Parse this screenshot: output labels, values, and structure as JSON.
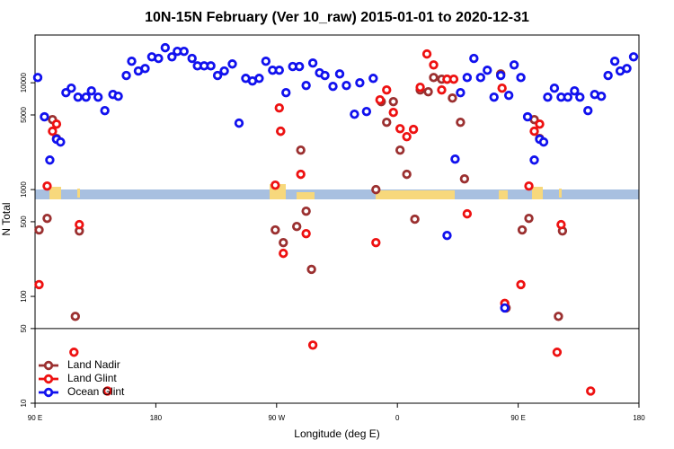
{
  "chart_data": {
    "type": "scatter",
    "title": "10N-15N February (Ver 10_raw)   2015-01-01 to 2020-12-31",
    "x_label": "Longitude (deg E)",
    "y_label": "N Total",
    "xlim": [
      90,
      540
    ],
    "xticks": [
      {
        "value": 90,
        "label": "90 E"
      },
      {
        "value": 180,
        "label": "180"
      },
      {
        "value": 270,
        "label": "90 W"
      },
      {
        "value": 360,
        "label": "0"
      },
      {
        "value": 450,
        "label": "90 E"
      },
      {
        "value": 540,
        "label": "180"
      }
    ],
    "ylim": [
      10,
      28000
    ],
    "yticks": [
      10,
      50,
      100,
      500,
      1000,
      5000,
      10000
    ],
    "log_y": true,
    "legend": "bottom-left",
    "series": [
      {
        "name": "Land Nadir",
        "color": "#9b3030",
        "x": [
          93,
          99,
          103,
          106,
          123,
          120,
          269,
          273,
          275,
          285,
          288,
          292,
          296,
          344,
          348,
          352,
          357,
          362,
          367,
          373,
          377,
          383,
          387,
          393,
          397,
          401,
          407,
          410,
          437,
          441,
          453,
          458,
          462,
          466,
          483,
          480
        ],
        "values": [
          419,
          538,
          4520,
          3010,
          410,
          65,
          419,
          3520,
          319,
          452,
          2340,
          628,
          179,
          1000,
          6660,
          4270,
          6660,
          2340,
          1390,
          528,
          8570,
          8240,
          11200,
          10800,
          10800,
          7190,
          4270,
          1260,
          12100,
          78,
          419,
          538,
          4520,
          3010,
          410,
          65
        ]
      },
      {
        "name": "Land Glint",
        "color": "#ee1111",
        "x": [
          93,
          99,
          103,
          106,
          123,
          119,
          144,
          269,
          272,
          273,
          275,
          288,
          292,
          297,
          344,
          347,
          352,
          357,
          362,
          367,
          372,
          377,
          382,
          387,
          393,
          397,
          402,
          412,
          438,
          440,
          452,
          458,
          462,
          466,
          482,
          479,
          504
        ],
        "values": [
          129,
          1080,
          3520,
          4100,
          470,
          30,
          13,
          1100,
          5820,
          3520,
          253,
          1390,
          387,
          35,
          319,
          6920,
          8570,
          5280,
          3720,
          3130,
          3660,
          9080,
          18600,
          14700,
          8570,
          10800,
          10800,
          593,
          8900,
          86,
          129,
          1080,
          3520,
          4100,
          470,
          30,
          13
        ]
      },
      {
        "name": "Ocean Glint",
        "color": "#1111ee",
        "x": [
          92,
          97,
          101,
          106,
          109,
          113,
          117,
          122,
          128,
          132,
          137,
          142,
          148,
          152,
          158,
          162,
          167,
          172,
          177,
          182,
          187,
          192,
          196,
          201,
          207,
          211,
          216,
          221,
          226,
          231,
          237,
          242,
          247,
          252,
          257,
          262,
          267,
          272,
          277,
          282,
          287,
          292,
          297,
          302,
          306,
          312,
          317,
          322,
          328,
          332,
          337,
          342,
          403,
          407,
          412,
          417,
          422,
          427,
          432,
          437,
          443,
          447,
          452,
          457,
          462,
          466,
          469,
          472,
          477,
          482,
          487,
          492,
          496,
          502,
          507,
          512,
          517,
          522,
          526,
          531,
          536,
          397,
          440
        ],
        "values": [
          11200,
          4800,
          1890,
          2960,
          2790,
          8080,
          8900,
          7340,
          7340,
          8400,
          7340,
          5490,
          7780,
          7480,
          11700,
          15900,
          12900,
          13600,
          17500,
          16900,
          21300,
          17500,
          19700,
          19700,
          16900,
          14400,
          14400,
          14400,
          11700,
          12900,
          15000,
          4190,
          11000,
          10400,
          11000,
          15900,
          13100,
          13100,
          8080,
          14200,
          14200,
          9440,
          15300,
          12400,
          11700,
          9250,
          12100,
          9440,
          5080,
          10000,
          5380,
          11000,
          1930,
          8080,
          11200,
          16900,
          11200,
          13100,
          7340,
          11700,
          7630,
          14700,
          11200,
          4800,
          1890,
          2960,
          2790,
          7340,
          8900,
          7340,
          7340,
          8400,
          7340,
          5490,
          7780,
          7480,
          11700,
          15900,
          12900,
          13600,
          17500,
          372,
          78
        ]
      }
    ]
  }
}
